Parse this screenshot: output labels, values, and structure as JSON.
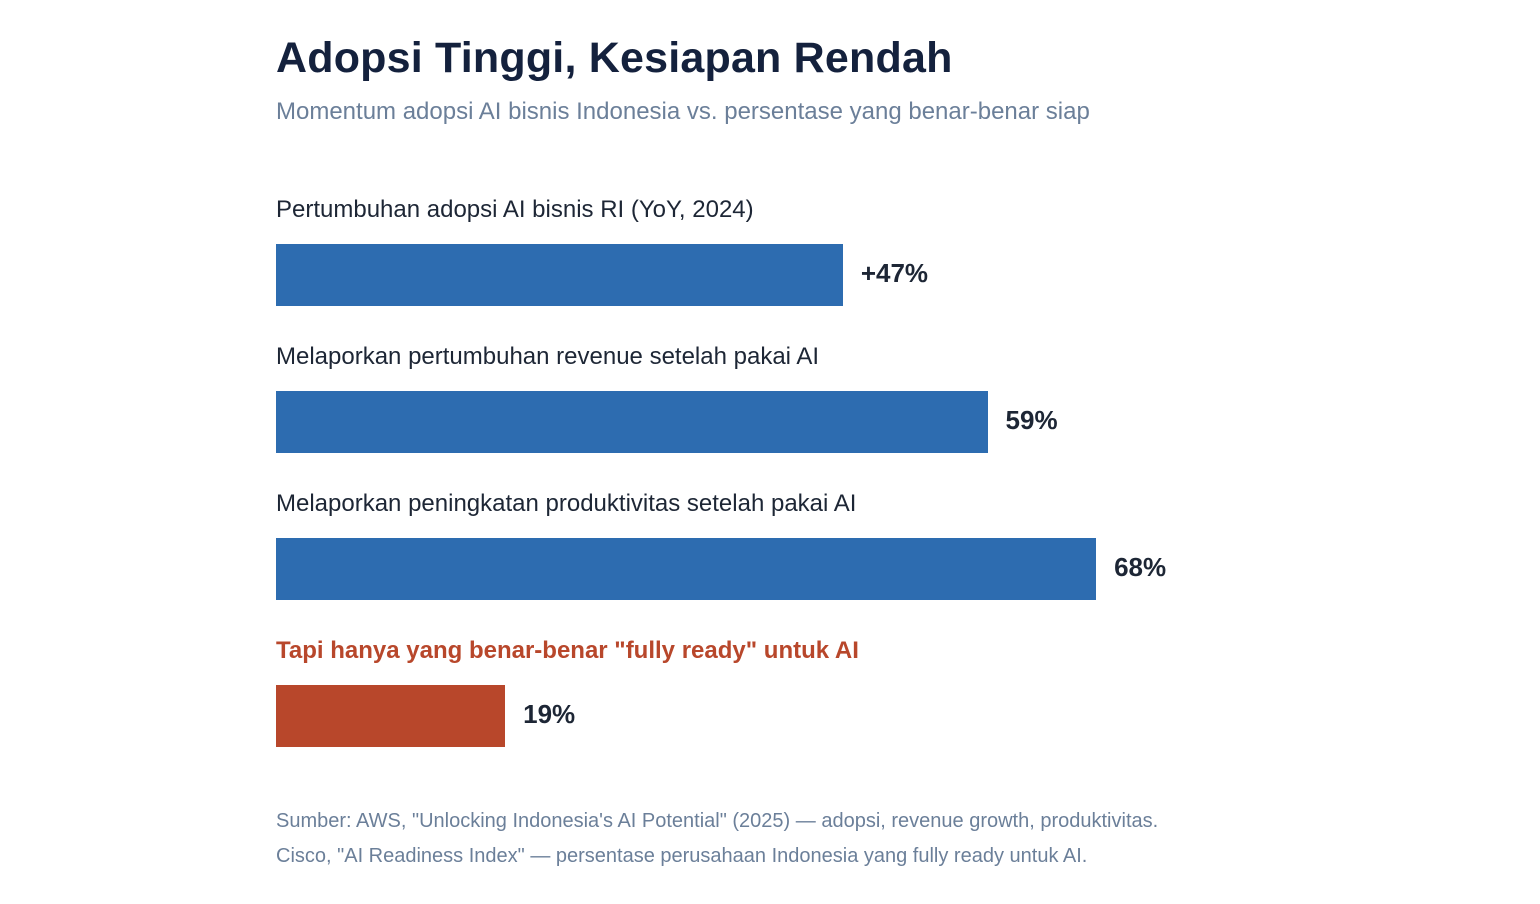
{
  "title": "Adopsi Tinggi, Kesiapan Rendah",
  "subtitle": "Momentum adopsi AI bisnis Indonesia vs. persentase yang benar-benar siap",
  "chart_data": {
    "type": "bar",
    "orientation": "horizontal",
    "title": "Adopsi Tinggi, Kesiapan Rendah",
    "subtitle": "Momentum adopsi AI bisnis Indonesia vs. persentase yang benar-benar siap",
    "categories": [
      "Pertumbuhan adopsi AI bisnis RI (YoY, 2024)",
      "Melaporkan pertumbuhan revenue setelah pakai AI",
      "Melaporkan peningkatan produktivitas setelah pakai AI",
      "Tapi hanya yang benar-benar \"fully ready\" untuk AI"
    ],
    "values": [
      47,
      59,
      68,
      19
    ],
    "value_labels": [
      "+47%",
      "59%",
      "68%",
      "19%"
    ],
    "highlight": [
      false,
      false,
      false,
      true
    ],
    "colors": {
      "default": "#2d6cb0",
      "highlight": "#b8472b",
      "highlight_label": "#b8472b",
      "value_label": "#1d2635"
    },
    "xlim": [
      0,
      100
    ],
    "grid": false,
    "legend": "none"
  },
  "source": {
    "line1": "Sumber: AWS, \"Unlocking Indonesia's AI Potential\" (2025) — adopsi, revenue growth, produktivitas.",
    "line2": "Cisco, \"AI Readiness Index\" — persentase perusahaan Indonesia yang fully ready untuk AI."
  }
}
